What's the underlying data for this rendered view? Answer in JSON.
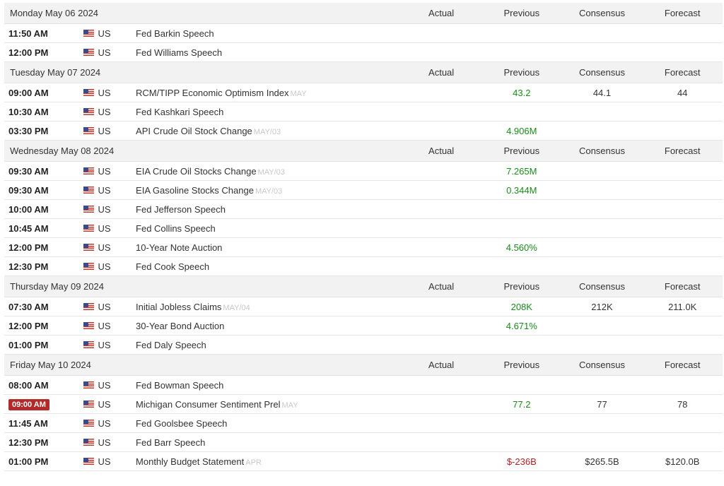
{
  "headers": {
    "actual": "Actual",
    "previous": "Previous",
    "consensus": "Consensus",
    "forecast": "Forecast"
  },
  "days": [
    {
      "date": "Monday May 06 2024",
      "events": [
        {
          "time": "11:50 AM",
          "country": "US",
          "event": "Fed Barkin Speech",
          "period": "",
          "actual": "",
          "previous": "",
          "consensus": "",
          "forecast": ""
        },
        {
          "time": "12:00 PM",
          "country": "US",
          "event": "Fed Williams Speech",
          "period": "",
          "actual": "",
          "previous": "",
          "consensus": "",
          "forecast": ""
        }
      ]
    },
    {
      "date": "Tuesday May 07 2024",
      "events": [
        {
          "time": "09:00 AM",
          "country": "US",
          "event": "RCM/TIPP Economic Optimism Index",
          "period": "MAY",
          "actual": "",
          "previous": "43.2",
          "previous_tone": "pos",
          "consensus": "44.1",
          "forecast": "44"
        },
        {
          "time": "10:30 AM",
          "country": "US",
          "event": "Fed Kashkari Speech",
          "period": "",
          "actual": "",
          "previous": "",
          "consensus": "",
          "forecast": ""
        },
        {
          "time": "03:30 PM",
          "country": "US",
          "event": "API Crude Oil Stock Change",
          "period": "MAY/03",
          "actual": "",
          "previous": "4.906M",
          "previous_tone": "pos",
          "consensus": "",
          "forecast": ""
        }
      ]
    },
    {
      "date": "Wednesday May 08 2024",
      "events": [
        {
          "time": "09:30 AM",
          "country": "US",
          "event": "EIA Crude Oil Stocks Change",
          "period": "MAY/03",
          "actual": "",
          "previous": "7.265M",
          "previous_tone": "pos",
          "consensus": "",
          "forecast": ""
        },
        {
          "time": "09:30 AM",
          "country": "US",
          "event": "EIA Gasoline Stocks Change",
          "period": "MAY/03",
          "actual": "",
          "previous": "0.344M",
          "previous_tone": "pos",
          "consensus": "",
          "forecast": ""
        },
        {
          "time": "10:00 AM",
          "country": "US",
          "event": "Fed Jefferson Speech",
          "period": "",
          "actual": "",
          "previous": "",
          "consensus": "",
          "forecast": ""
        },
        {
          "time": "10:45 AM",
          "country": "US",
          "event": "Fed Collins Speech",
          "period": "",
          "actual": "",
          "previous": "",
          "consensus": "",
          "forecast": ""
        },
        {
          "time": "12:00 PM",
          "country": "US",
          "event": "10-Year Note Auction",
          "period": "",
          "actual": "",
          "previous": "4.560%",
          "previous_tone": "pos",
          "consensus": "",
          "forecast": ""
        },
        {
          "time": "12:30 PM",
          "country": "US",
          "event": "Fed Cook Speech",
          "period": "",
          "actual": "",
          "previous": "",
          "consensus": "",
          "forecast": ""
        }
      ]
    },
    {
      "date": "Thursday May 09 2024",
      "events": [
        {
          "time": "07:30 AM",
          "country": "US",
          "event": "Initial Jobless Claims",
          "period": "MAY/04",
          "actual": "",
          "previous": "208K",
          "previous_tone": "pos",
          "consensus": "212K",
          "forecast": "211.0K"
        },
        {
          "time": "12:00 PM",
          "country": "US",
          "event": "30-Year Bond Auction",
          "period": "",
          "actual": "",
          "previous": "4.671%",
          "previous_tone": "pos",
          "consensus": "",
          "forecast": ""
        },
        {
          "time": "01:00 PM",
          "country": "US",
          "event": "Fed Daly Speech",
          "period": "",
          "actual": "",
          "previous": "",
          "consensus": "",
          "forecast": ""
        }
      ]
    },
    {
      "date": "Friday May 10 2024",
      "events": [
        {
          "time": "08:00 AM",
          "country": "US",
          "event": "Fed Bowman Speech",
          "period": "",
          "actual": "",
          "previous": "",
          "consensus": "",
          "forecast": ""
        },
        {
          "time": "09:00 AM",
          "highlight": true,
          "country": "US",
          "event": "Michigan Consumer Sentiment Prel",
          "period": "MAY",
          "actual": "",
          "previous": "77.2",
          "previous_tone": "pos",
          "consensus": "77",
          "forecast": "78"
        },
        {
          "time": "11:45 AM",
          "country": "US",
          "event": "Fed Goolsbee Speech",
          "period": "",
          "actual": "",
          "previous": "",
          "consensus": "",
          "forecast": ""
        },
        {
          "time": "12:30 PM",
          "country": "US",
          "event": "Fed Barr Speech",
          "period": "",
          "actual": "",
          "previous": "",
          "consensus": "",
          "forecast": ""
        },
        {
          "time": "01:00 PM",
          "country": "US",
          "event": "Monthly Budget Statement",
          "period": "APR",
          "actual": "",
          "previous": "$-236B",
          "previous_tone": "neg",
          "consensus": "$265.5B",
          "forecast": "$120.0B"
        }
      ]
    }
  ],
  "colors": {
    "positive": "#1a8a1a",
    "negative": "#b22222",
    "highlight_badge": "#b22a2a"
  },
  "icons": {
    "flag": "us-flag-icon"
  }
}
